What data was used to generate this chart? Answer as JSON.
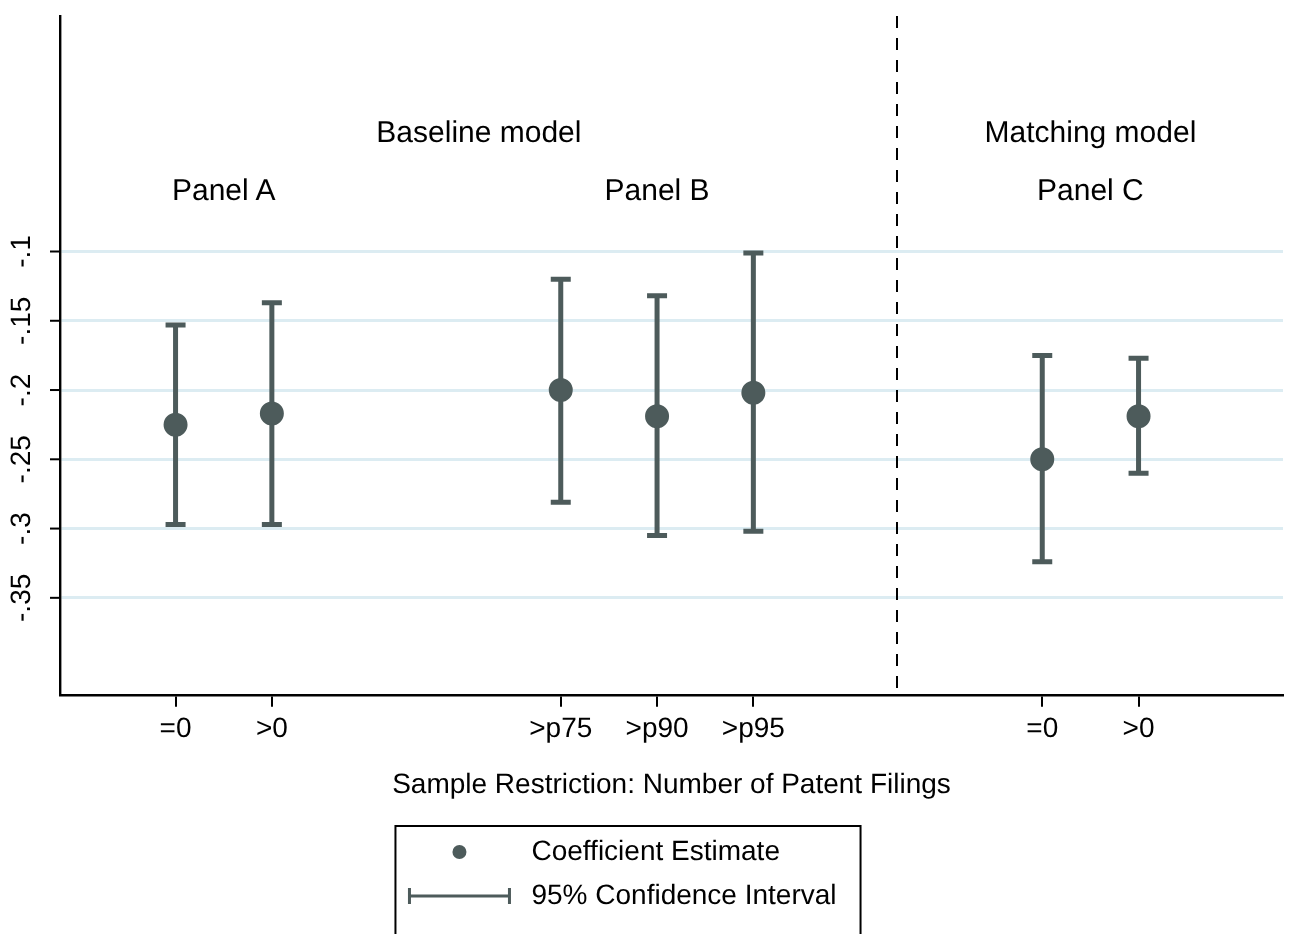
{
  "chart_data": {
    "type": "scatter",
    "xlabel": "Sample Restriction: Number of Patent Filings",
    "categories": [
      "=0",
      ">0",
      null,
      null,
      ">p75",
      ">p90",
      ">p95",
      null,
      null,
      "=0",
      ">0"
    ],
    "ylim": [
      -0.42,
      0.07
    ],
    "yticks": [
      {
        "value": -0.35,
        "label": "-.35"
      },
      {
        "value": -0.3,
        "label": "-.3"
      },
      {
        "value": -0.25,
        "label": "-.25"
      },
      {
        "value": -0.2,
        "label": "-.2"
      },
      {
        "value": -0.15,
        "label": "-.15"
      },
      {
        "value": -0.1,
        "label": "-.1"
      }
    ],
    "series": [
      {
        "name": "Coefficient Estimate",
        "color": "#4d5b5b",
        "values": [
          -0.225,
          -0.217,
          null,
          null,
          -0.2,
          -0.219,
          -0.202,
          null,
          null,
          -0.25,
          -0.219
        ],
        "errors": [
          [
            -0.297,
            -0.153
          ],
          [
            -0.297,
            -0.137
          ],
          null,
          null,
          [
            -0.281,
            -0.12
          ],
          [
            -0.305,
            -0.132
          ],
          [
            -0.302,
            -0.101
          ],
          null,
          null,
          [
            -0.324,
            -0.175
          ],
          [
            -0.26,
            -0.177
          ]
        ]
      }
    ],
    "annotations": [
      "Baseline model",
      "Matching model",
      "Panel A",
      "Panel B",
      "Panel C",
      "95% Confidence Interval"
    ],
    "grid": "y",
    "legend": "bottom",
    "marker": "circle"
  }
}
